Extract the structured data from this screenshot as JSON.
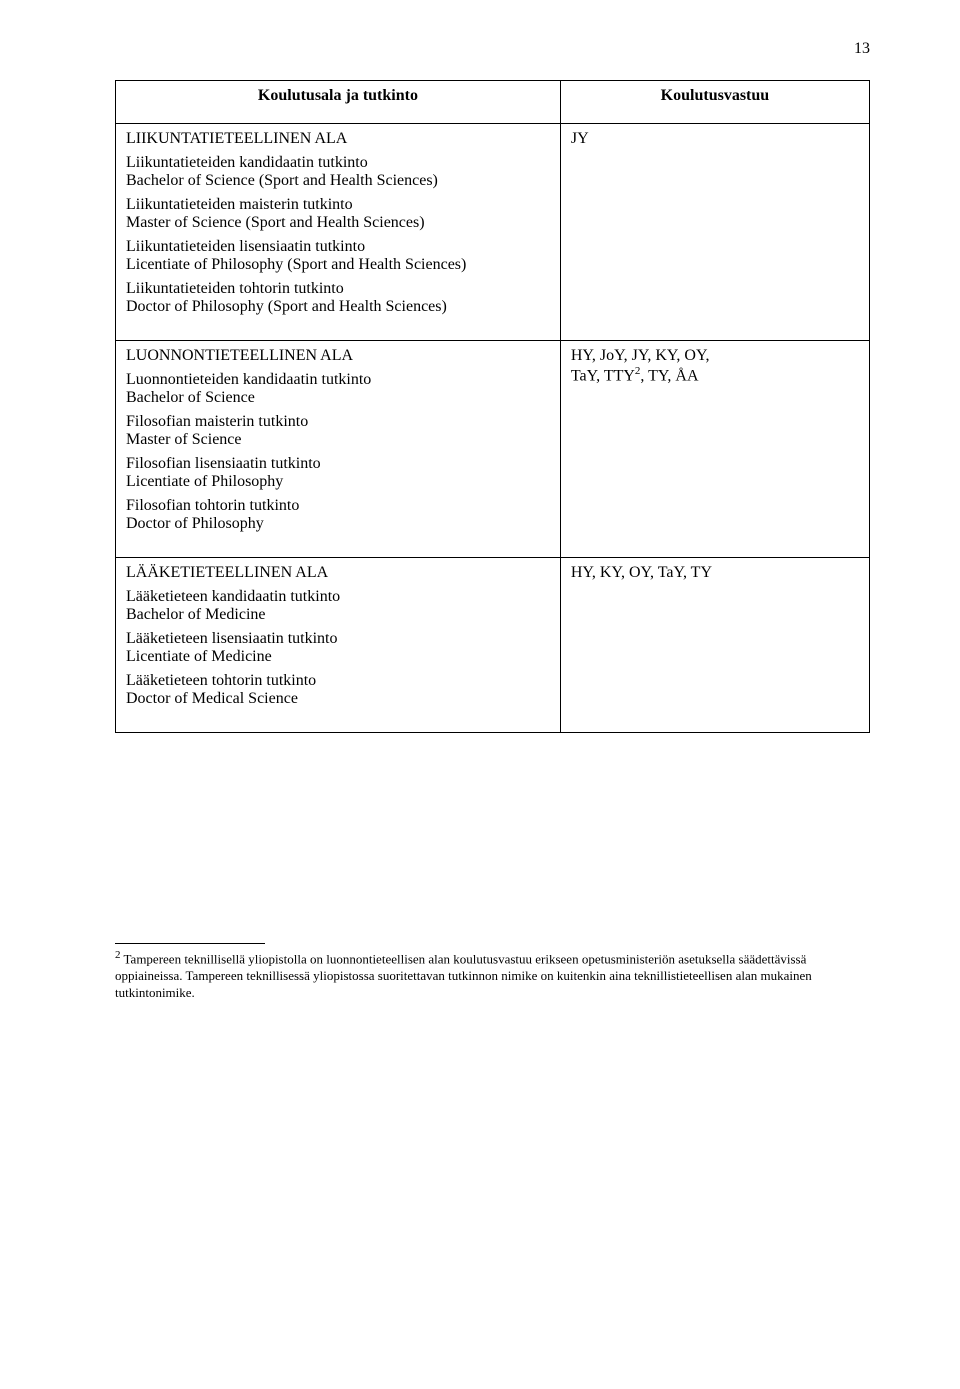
{
  "page_number": "13",
  "table": {
    "header_left": "Koulutusala ja tutkinto",
    "header_right": "Koulutusvastuu",
    "sections": [
      {
        "left_heading": "LIIKUNTATIETEELLINEN ALA",
        "right_text_line1": "JY",
        "right_text_line2": "",
        "degrees": [
          {
            "fi": "Liikuntatieteiden kandidaatin tutkinto",
            "en": "Bachelor of Science (Sport and Health Sciences)"
          },
          {
            "fi": "Liikuntatieteiden maisterin tutkinto",
            "en": "Master of Science (Sport and Health Sciences)"
          },
          {
            "fi": "Liikuntatieteiden lisensiaatin tutkinto",
            "en": "Licentiate of Philosophy (Sport and Health Sciences)"
          },
          {
            "fi": "Liikuntatieteiden tohtorin tutkinto",
            "en": "Doctor of Philosophy (Sport and Health Sciences)"
          }
        ]
      },
      {
        "left_heading": "LUONNONTIETEELLINEN ALA",
        "right_text_line1": "HY, JoY, JY, KY, OY,",
        "right_text_line2_prefix": "TaY, TTY",
        "right_text_line2_sup": "2",
        "right_text_line2_suffix": ", TY, ÅA",
        "degrees": [
          {
            "fi": "Luonnontieteiden kandidaatin tutkinto",
            "en": "Bachelor of Science"
          },
          {
            "fi": "Filosofian maisterin tutkinto",
            "en": "Master of Science"
          },
          {
            "fi": "Filosofian lisensiaatin tutkinto",
            "en": "Licentiate of Philosophy"
          },
          {
            "fi": "Filosofian tohtorin tutkinto",
            "en": "Doctor of Philosophy"
          }
        ]
      },
      {
        "left_heading": "LÄÄKETIETEELLINEN ALA",
        "right_text_line1": "HY, KY, OY, TaY, TY",
        "right_text_line2": "",
        "degrees": [
          {
            "fi": "Lääketieteen kandidaatin tutkinto",
            "en": "Bachelor of Medicine"
          },
          {
            "fi": "Lääketieteen lisensiaatin tutkinto",
            "en": "Licentiate of Medicine"
          },
          {
            "fi": "Lääketieteen tohtorin tutkinto",
            "en": "Doctor of Medical Science"
          }
        ]
      }
    ]
  },
  "footnote": {
    "marker": "2",
    "text": "Tampereen teknillisellä yliopistolla on luonnontieteellisen alan koulutusvastuu erikseen opetusministeriön asetuksella säädettävissä oppiaineissa. Tampereen teknillisessä yliopistossa suoritettavan tutkinnon nimike on kuitenkin aina teknillistieteellisen alan mukainen tutkintonimike."
  }
}
